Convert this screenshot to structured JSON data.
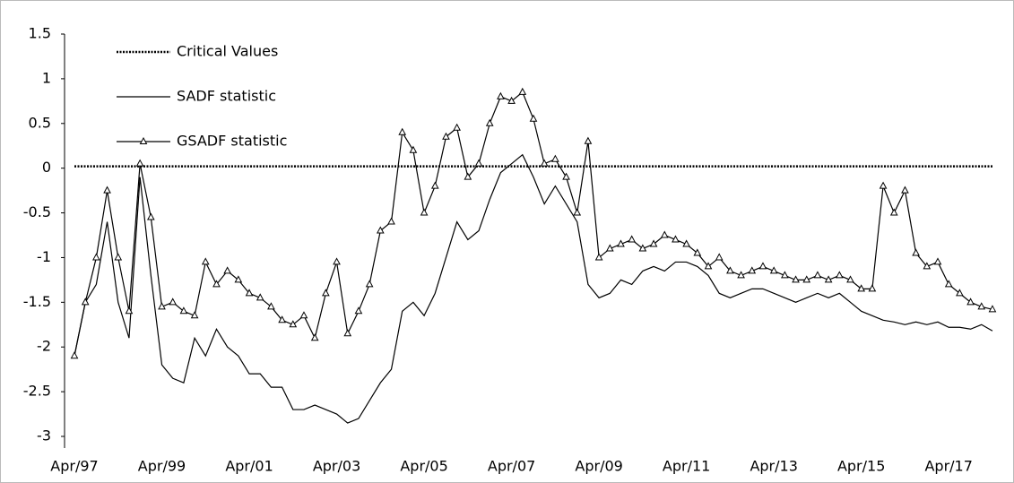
{
  "chart_data": {
    "type": "line",
    "categories": [
      "Apr/97",
      null,
      null,
      null,
      null,
      null,
      null,
      null,
      "Apr/99",
      null,
      null,
      null,
      null,
      null,
      null,
      null,
      "Apr/01",
      null,
      null,
      null,
      null,
      null,
      null,
      null,
      "Apr/03",
      null,
      null,
      null,
      null,
      null,
      null,
      null,
      "Apr/05",
      null,
      null,
      null,
      null,
      null,
      null,
      null,
      "Apr/07",
      null,
      null,
      null,
      null,
      null,
      null,
      null,
      "Apr/09",
      null,
      null,
      null,
      null,
      null,
      null,
      null,
      "Apr/11",
      null,
      null,
      null,
      null,
      null,
      null,
      null,
      "Apr/13",
      null,
      null,
      null,
      null,
      null,
      null,
      null,
      "Apr/15",
      null,
      null,
      null,
      null,
      null,
      null,
      null,
      "Apr/17",
      null,
      null,
      null,
      null
    ],
    "series": [
      {
        "name": "Critical Values",
        "color": "#000000",
        "dash": "dotted",
        "values": [
          0.02,
          0.02,
          0.02,
          0.02,
          0.02,
          0.02,
          0.02,
          0.02,
          0.02,
          0.02,
          0.02,
          0.02,
          0.02,
          0.02,
          0.02,
          0.02,
          0.02,
          0.02,
          0.02,
          0.02,
          0.02,
          0.02,
          0.02,
          0.02,
          0.02,
          0.02,
          0.02,
          0.02,
          0.02,
          0.02,
          0.02,
          0.02,
          0.02,
          0.02,
          0.02,
          0.02,
          0.02,
          0.02,
          0.02,
          0.02,
          0.02,
          0.02,
          0.02,
          0.02,
          0.02,
          0.02,
          0.02,
          0.02,
          0.02,
          0.02,
          0.02,
          0.02,
          0.02,
          0.02,
          0.02,
          0.02,
          0.02,
          0.02,
          0.02,
          0.02,
          0.02,
          0.02,
          0.02,
          0.02,
          0.02,
          0.02,
          0.02,
          0.02,
          0.02,
          0.02,
          0.02,
          0.02,
          0.02,
          0.02,
          0.02,
          0.02,
          0.02,
          0.02,
          0.02,
          0.02,
          0.02,
          0.02,
          0.02,
          0.02,
          0.02
        ]
      },
      {
        "name": "SADF statistic",
        "color": "#000000",
        "dash": "solid",
        "values": [
          -2.1,
          -1.5,
          -1.3,
          -0.6,
          -1.5,
          -1.9,
          -0.1,
          -1.2,
          -2.2,
          -2.35,
          -2.4,
          -1.9,
          -2.1,
          -1.8,
          -2.0,
          -2.1,
          -2.3,
          -2.3,
          -2.45,
          -2.45,
          -2.7,
          -2.7,
          -2.65,
          -2.7,
          -2.75,
          -2.85,
          -2.8,
          -2.6,
          -2.4,
          -2.25,
          -1.6,
          -1.5,
          -1.65,
          -1.4,
          -1.0,
          -0.6,
          -0.8,
          -0.7,
          -0.35,
          -0.05,
          0.05,
          0.15,
          -0.1,
          -0.4,
          -0.2,
          -0.4,
          -0.6,
          -1.3,
          -1.45,
          -1.4,
          -1.25,
          -1.3,
          -1.15,
          -1.1,
          -1.15,
          -1.05,
          -1.05,
          -1.1,
          -1.2,
          -1.4,
          -1.45,
          -1.4,
          -1.35,
          -1.35,
          -1.4,
          -1.45,
          -1.5,
          -1.45,
          -1.4,
          -1.45,
          -1.4,
          -1.5,
          -1.6,
          -1.65,
          -1.7,
          -1.72,
          -1.75,
          -1.72,
          -1.75,
          -1.72,
          -1.78,
          -1.78,
          -1.8,
          -1.75,
          -1.82
        ]
      },
      {
        "name": "GSADF statistic",
        "color": "#000000",
        "dash": "solid",
        "marker": "triangle",
        "values": [
          -2.1,
          -1.5,
          -1.0,
          -0.25,
          -1.0,
          -1.6,
          0.05,
          -0.55,
          -1.55,
          -1.5,
          -1.6,
          -1.65,
          -1.05,
          -1.3,
          -1.15,
          -1.25,
          -1.4,
          -1.45,
          -1.55,
          -1.7,
          -1.75,
          -1.65,
          -1.9,
          -1.4,
          -1.05,
          -1.85,
          -1.6,
          -1.3,
          -0.7,
          -0.6,
          0.4,
          0.2,
          -0.5,
          -0.2,
          0.35,
          0.45,
          -0.1,
          0.05,
          0.5,
          0.8,
          0.75,
          0.85,
          0.55,
          0.05,
          0.1,
          -0.1,
          -0.5,
          0.3,
          -1.0,
          -0.9,
          -0.85,
          -0.8,
          -0.9,
          -0.85,
          -0.75,
          -0.8,
          -0.85,
          -0.95,
          -1.1,
          -1.0,
          -1.15,
          -1.2,
          -1.15,
          -1.1,
          -1.15,
          -1.2,
          -1.25,
          -1.25,
          -1.2,
          -1.25,
          -1.2,
          -1.25,
          -1.35,
          -1.35,
          -0.2,
          -0.5,
          -0.25,
          -0.95,
          -1.1,
          -1.05,
          -1.3,
          -1.4,
          -1.5,
          -1.55,
          -1.58
        ]
      }
    ],
    "ylim": [
      -3,
      1.5
    ],
    "yticks": [
      1.5,
      1,
      0.5,
      0,
      -0.5,
      -1,
      -1.5,
      -2,
      -2.5,
      -3
    ],
    "legend": "upper left",
    "grid": false
  }
}
